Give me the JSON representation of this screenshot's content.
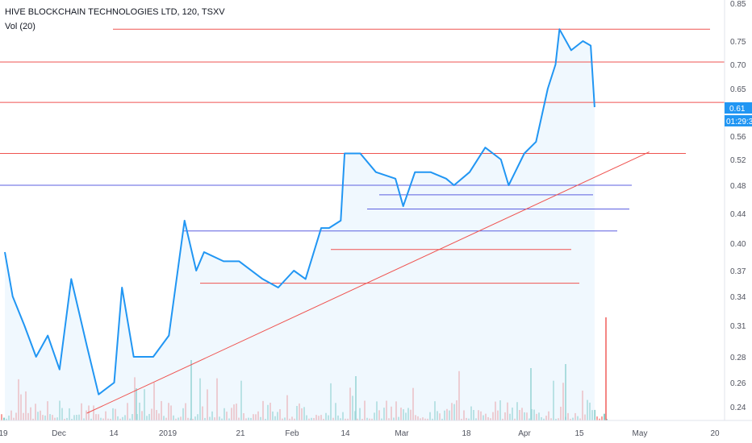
{
  "header": {
    "title": "HIVE BLOCKCHAIN TECHNOLOGIES LTD, 120, TSXV",
    "volume_label": "Vol (20)"
  },
  "colors": {
    "line": "#2196f3",
    "area": "#e3f2fd",
    "red_line": "#ef5350",
    "blue_line": "#5b5fe0",
    "last_price_bg": "#2196f3",
    "vol_up": "#26a69a",
    "vol_down": "#ef5350"
  },
  "price_axis": {
    "ticks": [
      "0.85",
      "0.75",
      "0.70",
      "0.65",
      "0.61",
      "0.56",
      "0.52",
      "0.48",
      "0.44",
      "0.40",
      "0.37",
      "0.34",
      "0.31",
      "0.28",
      "0.26",
      "0.24"
    ],
    "last_price": "0.61",
    "countdown": "01:29:3"
  },
  "time_axis": {
    "labels": [
      "19",
      "Dec",
      "14",
      "2019",
      "21",
      "Feb",
      "14",
      "Mar",
      "18",
      "Apr",
      "15",
      "May",
      "20"
    ]
  },
  "chart_data": {
    "type": "line",
    "title": "HIVE BLOCKCHAIN TECHNOLOGIES LTD, 120, TSXV",
    "xlabel": "",
    "ylabel": "",
    "ylim": [
      0.23,
      0.85
    ],
    "scale": "log",
    "grid": false,
    "series": [
      {
        "x": [
          "2018-11-19",
          "2018-11-21",
          "2018-11-24",
          "2018-11-27",
          "2018-11-30",
          "2018-12-03",
          "2018-12-06",
          "2018-12-10",
          "2018-12-13",
          "2018-12-17",
          "2018-12-19",
          "2018-12-22",
          "2018-12-27",
          "2018-12-31",
          "2019-01-04",
          "2019-01-07",
          "2019-01-09",
          "2019-01-14",
          "2019-01-18",
          "2019-01-24",
          "2019-01-28",
          "2019-02-01",
          "2019-02-04",
          "2019-02-08",
          "2019-02-10",
          "2019-02-13",
          "2019-02-14",
          "2019-02-18",
          "2019-02-22",
          "2019-02-27",
          "2019-03-01",
          "2019-03-04",
          "2019-03-08",
          "2019-03-12",
          "2019-03-14",
          "2019-03-18",
          "2019-03-22",
          "2019-03-26",
          "2019-03-28",
          "2019-04-01",
          "2019-04-04",
          "2019-04-07",
          "2019-04-09",
          "2019-04-10",
          "2019-04-13",
          "2019-04-16",
          "2019-04-18",
          "2019-04-19"
        ],
        "values": [
          0.39,
          0.34,
          0.31,
          0.28,
          0.3,
          0.27,
          0.36,
          0.29,
          0.25,
          0.26,
          0.35,
          0.28,
          0.28,
          0.3,
          0.43,
          0.37,
          0.39,
          0.38,
          0.38,
          0.36,
          0.35,
          0.37,
          0.36,
          0.42,
          0.42,
          0.43,
          0.53,
          0.53,
          0.5,
          0.49,
          0.45,
          0.5,
          0.5,
          0.49,
          0.48,
          0.5,
          0.54,
          0.52,
          0.48,
          0.53,
          0.55,
          0.65,
          0.7,
          0.78,
          0.73,
          0.75,
          0.74,
          0.61
        ]
      }
    ],
    "horizontal_lines": [
      {
        "color": "red",
        "price": 0.78
      },
      {
        "color": "red",
        "price": 0.705
      },
      {
        "color": "red",
        "price": 0.62
      },
      {
        "color": "red",
        "price": 0.53
      },
      {
        "color": "blue",
        "price": 0.48
      },
      {
        "color": "blue",
        "price": 0.466
      },
      {
        "color": "blue",
        "price": 0.446
      },
      {
        "color": "blue",
        "price": 0.416
      },
      {
        "color": "red",
        "price": 0.393
      },
      {
        "color": "red",
        "price": 0.355
      }
    ],
    "trendline": {
      "from": {
        "x": "2018-12-10",
        "y": 0.24
      },
      "to": {
        "x": "2019-05-03",
        "y": 0.53
      }
    }
  }
}
